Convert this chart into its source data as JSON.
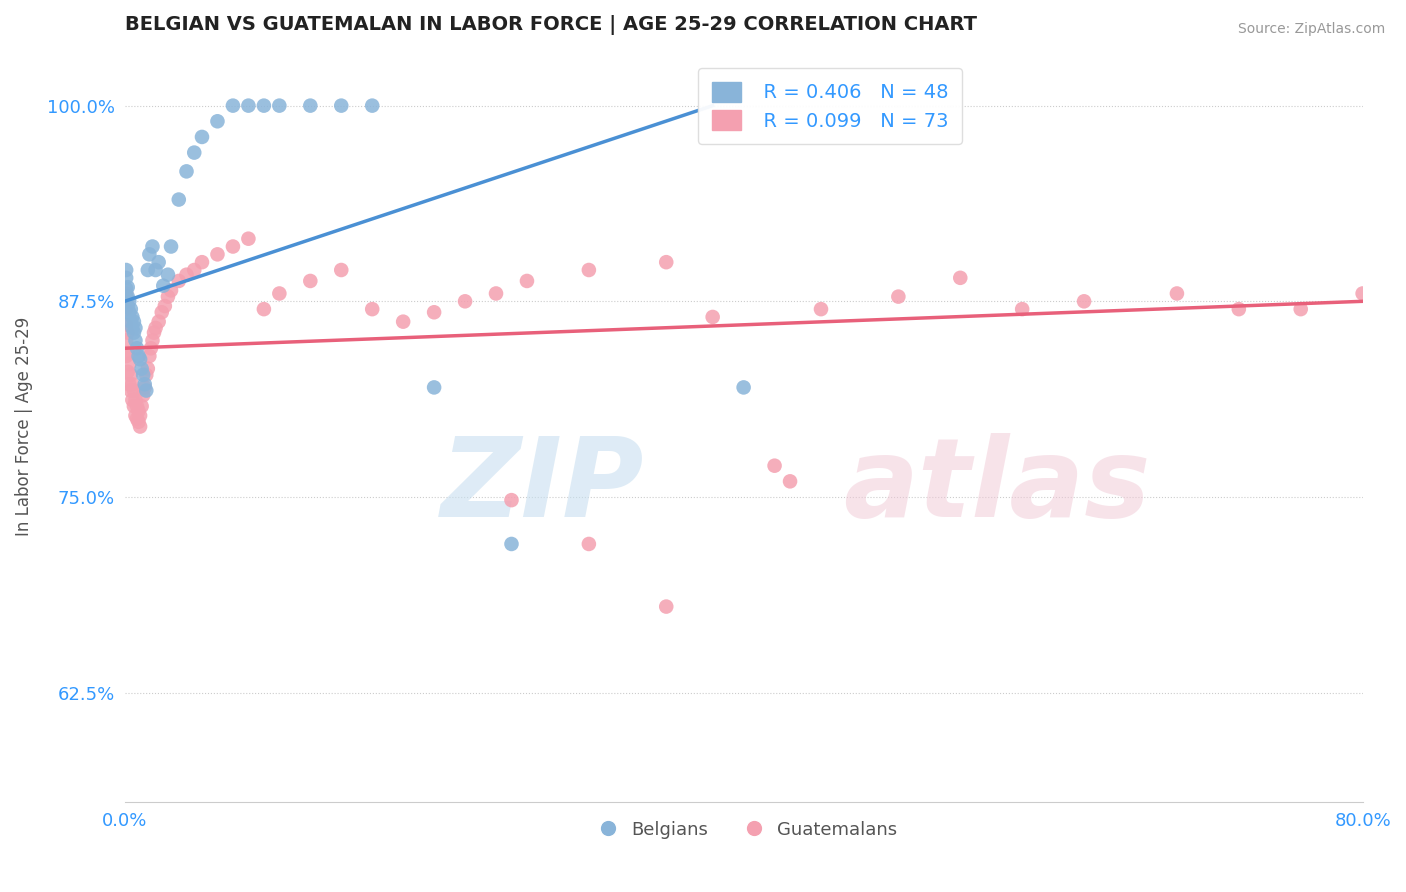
{
  "title": "BELGIAN VS GUATEMALAN IN LABOR FORCE | AGE 25-29 CORRELATION CHART",
  "source": "Source: ZipAtlas.com",
  "ylabel": "In Labor Force | Age 25-29",
  "xlim": [
    0.0,
    0.8
  ],
  "ylim": [
    0.555,
    1.035
  ],
  "xticks": [
    0.0,
    0.8
  ],
  "xticklabels": [
    "0.0%",
    "80.0%"
  ],
  "yticks": [
    0.625,
    0.75,
    0.875,
    1.0
  ],
  "yticklabels": [
    "62.5%",
    "75.0%",
    "87.5%",
    "100.0%"
  ],
  "belgian_color": "#89b4d9",
  "guatemalan_color": "#f4a0b0",
  "belgian_line_color": "#4a90d4",
  "guatemalan_line_color": "#e8607a",
  "legend_R_belgian": "R = 0.406",
  "legend_N_belgian": "N = 48",
  "legend_R_guatemalan": "R = 0.099",
  "legend_N_guatemalan": "N = 73",
  "belgian_x": [
    0.001,
    0.001,
    0.001,
    0.001,
    0.001,
    0.002,
    0.002,
    0.002,
    0.003,
    0.003,
    0.004,
    0.004,
    0.005,
    0.005,
    0.006,
    0.006,
    0.007,
    0.007,
    0.008,
    0.009,
    0.01,
    0.011,
    0.012,
    0.013,
    0.014,
    0.015,
    0.016,
    0.018,
    0.02,
    0.022,
    0.025,
    0.028,
    0.03,
    0.035,
    0.04,
    0.045,
    0.05,
    0.06,
    0.07,
    0.08,
    0.09,
    0.1,
    0.12,
    0.14,
    0.16,
    0.2,
    0.25,
    0.4
  ],
  "belgian_y": [
    0.878,
    0.883,
    0.89,
    0.895,
    0.875,
    0.872,
    0.878,
    0.884,
    0.868,
    0.875,
    0.862,
    0.87,
    0.858,
    0.865,
    0.855,
    0.862,
    0.85,
    0.858,
    0.845,
    0.84,
    0.838,
    0.832,
    0.828,
    0.822,
    0.818,
    0.895,
    0.905,
    0.91,
    0.895,
    0.9,
    0.885,
    0.892,
    0.91,
    0.94,
    0.958,
    0.97,
    0.98,
    0.99,
    1.0,
    1.0,
    1.0,
    1.0,
    1.0,
    1.0,
    1.0,
    0.82,
    0.72,
    0.82
  ],
  "guatemalan_x": [
    0.001,
    0.001,
    0.001,
    0.001,
    0.001,
    0.002,
    0.002,
    0.002,
    0.003,
    0.003,
    0.004,
    0.004,
    0.005,
    0.005,
    0.006,
    0.006,
    0.007,
    0.007,
    0.008,
    0.008,
    0.009,
    0.009,
    0.01,
    0.01,
    0.011,
    0.012,
    0.013,
    0.014,
    0.015,
    0.016,
    0.017,
    0.018,
    0.019,
    0.02,
    0.022,
    0.024,
    0.026,
    0.028,
    0.03,
    0.035,
    0.04,
    0.045,
    0.05,
    0.06,
    0.07,
    0.08,
    0.09,
    0.1,
    0.12,
    0.14,
    0.16,
    0.18,
    0.2,
    0.22,
    0.24,
    0.26,
    0.3,
    0.35,
    0.38,
    0.42,
    0.45,
    0.5,
    0.54,
    0.58,
    0.62,
    0.68,
    0.72,
    0.76,
    0.8,
    0.43,
    0.25,
    0.3,
    0.35
  ],
  "guatemalan_y": [
    0.84,
    0.85,
    0.86,
    0.87,
    0.88,
    0.83,
    0.842,
    0.855,
    0.822,
    0.835,
    0.818,
    0.828,
    0.812,
    0.822,
    0.808,
    0.818,
    0.802,
    0.812,
    0.8,
    0.808,
    0.798,
    0.805,
    0.795,
    0.802,
    0.808,
    0.815,
    0.82,
    0.828,
    0.832,
    0.84,
    0.845,
    0.85,
    0.855,
    0.858,
    0.862,
    0.868,
    0.872,
    0.878,
    0.882,
    0.888,
    0.892,
    0.895,
    0.9,
    0.905,
    0.91,
    0.915,
    0.87,
    0.88,
    0.888,
    0.895,
    0.87,
    0.862,
    0.868,
    0.875,
    0.88,
    0.888,
    0.895,
    0.9,
    0.865,
    0.77,
    0.87,
    0.878,
    0.89,
    0.87,
    0.875,
    0.88,
    0.87,
    0.87,
    0.88,
    0.76,
    0.748,
    0.72,
    0.68
  ]
}
